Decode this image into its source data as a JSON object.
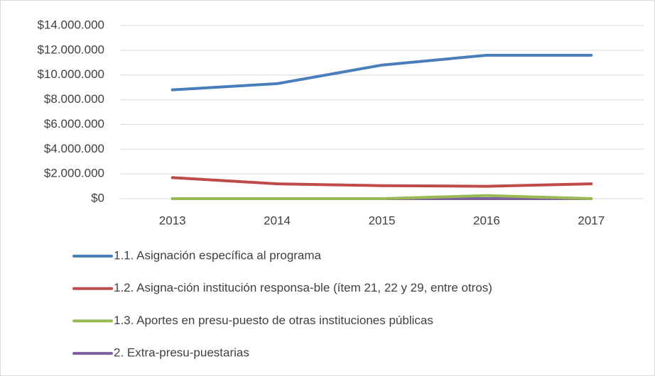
{
  "chart_data": {
    "type": "line",
    "categories": [
      "2013",
      "2014",
      "2015",
      "2016",
      "2017"
    ],
    "series": [
      {
        "name": "1.1. Asignación específica al programa",
        "color": "#4a7ebb",
        "values": [
          8800000,
          9300000,
          10800000,
          11600000,
          11600000
        ]
      },
      {
        "name": "1.2. Asigna-ción institución responsa-ble (ítem 21, 22 y 29, entre otros)",
        "color": "#be4b48",
        "values": [
          1700000,
          1200000,
          1050000,
          1000000,
          1200000
        ]
      },
      {
        "name": "1.3. Aportes en presu-puesto de otras instituciones públicas",
        "color": "#98b954",
        "values": [
          0,
          0,
          0,
          250000,
          0
        ]
      },
      {
        "name": "2. Extra-presu-puestarias",
        "color": "#7d60a0",
        "values": [
          0,
          0,
          0,
          0,
          0
        ]
      }
    ],
    "ylim": [
      0,
      14000000
    ],
    "yticks": [
      {
        "value": 0,
        "label": "$0"
      },
      {
        "value": 2000000,
        "label": "$2.000.000"
      },
      {
        "value": 4000000,
        "label": "$4.000.000"
      },
      {
        "value": 6000000,
        "label": "$6.000.000"
      },
      {
        "value": 8000000,
        "label": "$8.000.000"
      },
      {
        "value": 10000000,
        "label": "$10.000.000"
      },
      {
        "value": 12000000,
        "label": "$12.000.000"
      },
      {
        "value": 14000000,
        "label": "$14.000.000"
      }
    ],
    "grid": true,
    "legend": "bottom"
  }
}
